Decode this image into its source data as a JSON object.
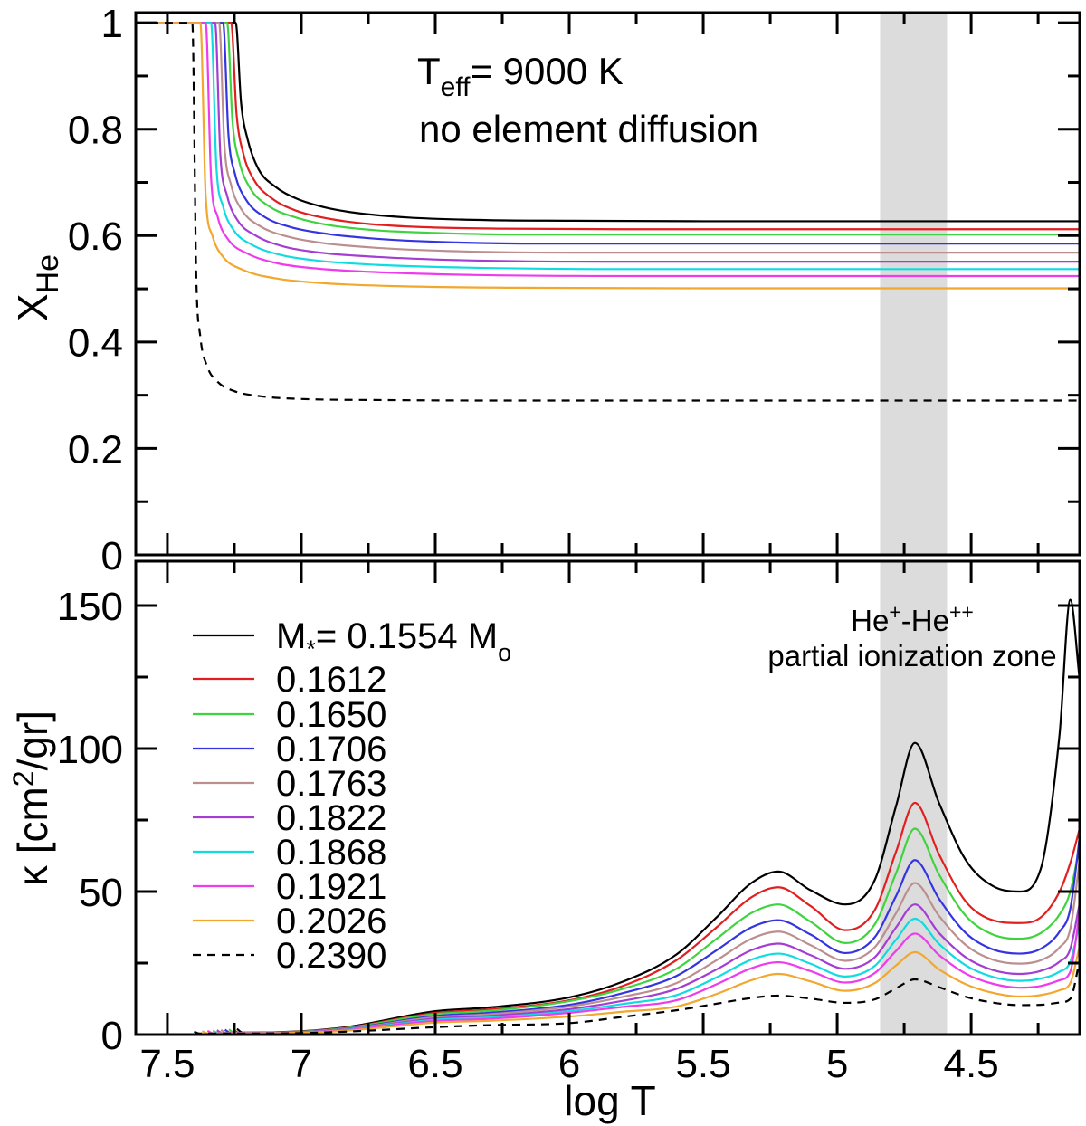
{
  "annotations": {
    "teff": {
      "prefix": "T",
      "sub": "eff",
      "rest": "= 9000 K"
    },
    "diffusion": "no element diffusion",
    "zone": {
      "line1_parts": [
        [
          "He",
          false
        ],
        [
          "+",
          true
        ],
        [
          "-He",
          false
        ],
        [
          "++",
          true
        ]
      ],
      "line2": "partial ionization zone"
    }
  },
  "axes": {
    "x_title": "log T",
    "top_y_title": {
      "main": "X",
      "sub": "He"
    },
    "bottom_y_title": {
      "pre": "κ [cm",
      "sup": "2",
      "post": "/gr]"
    }
  },
  "legend": {
    "first_row": {
      "m": "M",
      "star": "*",
      "eq": "= 0.1554 M",
      "sun": "o"
    },
    "labels": [
      "0.1612",
      "0.1650",
      "0.1706",
      "0.1763",
      "0.1822",
      "0.1868",
      "0.1921",
      "0.2026",
      "0.2390"
    ]
  },
  "chart_data": [
    {
      "type": "line",
      "title": "top panel: helium abundance profile",
      "xlabel": "log T",
      "ylabel": "X_He",
      "xlim": [
        7.618,
        4.095
      ],
      "x_reversed": true,
      "ylim": [
        0,
        1.019
      ],
      "grid": false,
      "x_major_ticks": [
        7.5,
        7.0,
        6.5,
        6.0,
        5.5,
        5.0,
        4.5
      ],
      "x_minor_ticks": [
        7.25,
        6.75,
        6.25,
        5.75,
        5.25,
        4.75,
        4.25
      ],
      "y_major_ticks": [
        0,
        0.2,
        0.4,
        0.6,
        0.8,
        1.0
      ],
      "y_tick_labels": [
        "0",
        "0.2",
        "0.4",
        "0.6",
        "0.8",
        "1"
      ],
      "y_minor_ticks": [
        0.1,
        0.3,
        0.5,
        0.7,
        0.9
      ],
      "band": {
        "logT_range": [
          4.84,
          4.59
        ],
        "color": "#dcdcdc"
      },
      "series": [
        {
          "name": "0.1554",
          "color": "#000000",
          "dash": false,
          "x": [
            7.618,
            7.245,
            7.225,
            7.2,
            7.16,
            7.1,
            7.02,
            6.92,
            6.8,
            6.6,
            6.3,
            6.0,
            5.5,
            4.095
          ],
          "y": [
            1,
            1,
            0.85,
            0.78,
            0.725,
            0.693,
            0.67,
            0.654,
            0.643,
            0.634,
            0.629,
            0.628,
            0.627,
            0.627
          ]
        },
        {
          "name": "0.1612",
          "color": "#e21f1f",
          "dash": false,
          "x": [
            7.618,
            7.262,
            7.242,
            7.217,
            7.177,
            7.11,
            7.02,
            6.9,
            6.75,
            6.55,
            6.25,
            5.8,
            4.095
          ],
          "y": [
            1,
            1,
            0.83,
            0.755,
            0.705,
            0.67,
            0.647,
            0.632,
            0.622,
            0.616,
            0.613,
            0.612,
            0.612
          ]
        },
        {
          "name": "0.1650",
          "color": "#3fd43f",
          "dash": false,
          "x": [
            7.618,
            7.277,
            7.257,
            7.232,
            7.192,
            7.12,
            7.02,
            6.9,
            6.72,
            6.5,
            6.2,
            4.095
          ],
          "y": [
            1,
            1,
            0.815,
            0.74,
            0.69,
            0.655,
            0.634,
            0.62,
            0.61,
            0.605,
            0.602,
            0.602
          ]
        },
        {
          "name": "0.1706",
          "color": "#3434e0",
          "dash": false,
          "x": [
            7.618,
            7.292,
            7.272,
            7.247,
            7.207,
            7.14,
            7.04,
            6.9,
            6.72,
            6.48,
            6.1,
            4.095
          ],
          "y": [
            1,
            1,
            0.79,
            0.715,
            0.668,
            0.636,
            0.616,
            0.603,
            0.594,
            0.588,
            0.585,
            0.585
          ]
        },
        {
          "name": "0.1763",
          "color": "#bc8f8f",
          "dash": false,
          "x": [
            7.618,
            7.307,
            7.287,
            7.262,
            7.222,
            7.155,
            7.05,
            6.92,
            6.72,
            6.45,
            6.0,
            4.095
          ],
          "y": [
            1,
            1,
            0.77,
            0.695,
            0.648,
            0.618,
            0.598,
            0.586,
            0.577,
            0.571,
            0.568,
            0.568
          ]
        },
        {
          "name": "0.1822",
          "color": "#a43dd1",
          "dash": false,
          "x": [
            7.618,
            7.322,
            7.302,
            7.277,
            7.237,
            7.17,
            7.07,
            6.93,
            6.72,
            6.42,
            5.9,
            4.095
          ],
          "y": [
            1,
            1,
            0.75,
            0.675,
            0.628,
            0.6,
            0.58,
            0.568,
            0.56,
            0.554,
            0.551,
            0.551
          ]
        },
        {
          "name": "0.1868",
          "color": "#0fdbe0",
          "dash": false,
          "x": [
            7.618,
            7.337,
            7.317,
            7.292,
            7.252,
            7.185,
            7.08,
            6.94,
            6.72,
            6.4,
            5.8,
            4.095
          ],
          "y": [
            1,
            1,
            0.73,
            0.655,
            0.61,
            0.583,
            0.564,
            0.553,
            0.545,
            0.54,
            0.537,
            0.537
          ]
        },
        {
          "name": "0.1921",
          "color": "#ee3bee",
          "dash": false,
          "x": [
            7.618,
            7.357,
            7.337,
            7.312,
            7.272,
            7.2,
            7.09,
            6.94,
            6.7,
            6.35,
            5.7,
            4.095
          ],
          "y": [
            1,
            1,
            0.71,
            0.635,
            0.592,
            0.566,
            0.548,
            0.538,
            0.531,
            0.526,
            0.524,
            0.524
          ]
        },
        {
          "name": "0.2026",
          "color": "#f2a72e",
          "dash": false,
          "x": [
            7.618,
            7.377,
            7.357,
            7.332,
            7.292,
            7.22,
            7.1,
            6.93,
            6.65,
            6.2,
            5.5,
            4.095
          ],
          "y": [
            1,
            1,
            0.675,
            0.6,
            0.56,
            0.536,
            0.52,
            0.511,
            0.505,
            0.502,
            0.501,
            0.501
          ]
        },
        {
          "name": "0.2390",
          "color": "#000000",
          "dash": true,
          "x": [
            7.618,
            7.407,
            7.392,
            7.377,
            7.352,
            7.312,
            7.252,
            7.15,
            7.0,
            6.7,
            6.2,
            4.095
          ],
          "y": [
            1,
            1,
            0.52,
            0.41,
            0.355,
            0.325,
            0.308,
            0.298,
            0.293,
            0.291,
            0.29,
            0.29
          ]
        }
      ]
    },
    {
      "type": "line",
      "title": "bottom panel: opacity profile",
      "xlabel": "log T",
      "ylabel": "kappa [cm2/gr]",
      "xlim": [
        7.618,
        4.095
      ],
      "x_reversed": true,
      "ylim": [
        0,
        165.5
      ],
      "grid": false,
      "x_major_ticks": [
        7.5,
        7.0,
        6.5,
        6.0,
        5.5,
        5.0,
        4.5
      ],
      "x_tick_labels": [
        "7.5",
        "7",
        "6.5",
        "6",
        "5.5",
        "5",
        "4.5"
      ],
      "x_minor_ticks": [
        7.25,
        6.75,
        6.25,
        5.75,
        5.25,
        4.75,
        4.25
      ],
      "y_major_ticks": [
        0,
        50,
        100,
        150
      ],
      "y_tick_labels": [
        "0",
        "50",
        "100",
        "150"
      ],
      "y_minor_ticks": [
        25,
        75,
        125
      ],
      "band": {
        "logT_range": [
          4.84,
          4.59
        ],
        "color": "#dcdcdc"
      },
      "legend_position": "upper left",
      "series": [
        {
          "name": "0.1554",
          "color": "#000000",
          "dash": false,
          "x": [
            7.24,
            7.22,
            7.1,
            6.84,
            6.5,
            6.3,
            6.0,
            5.8,
            5.6,
            5.45,
            5.32,
            5.22,
            5.1,
            4.97,
            4.86,
            4.78,
            4.71,
            4.62,
            4.52,
            4.42,
            4.32,
            4.24,
            4.17,
            4.13,
            4.095
          ],
          "y": [
            2.0,
            0.7,
            0.8,
            2.5,
            8.2,
            9.5,
            13,
            18.5,
            28,
            41,
            53,
            57,
            50.5,
            45.5,
            54,
            80,
            102,
            81,
            61,
            52,
            50,
            58,
            105,
            152,
            124
          ]
        },
        {
          "name": "0.1612",
          "color": "#e21f1f",
          "dash": false,
          "x": [
            7.255,
            7.235,
            7.1,
            6.84,
            6.5,
            6.3,
            6.0,
            5.8,
            5.6,
            5.45,
            5.32,
            5.22,
            5.1,
            4.97,
            4.86,
            4.78,
            4.71,
            4.62,
            4.52,
            4.42,
            4.32,
            4.24,
            4.17,
            4.13,
            4.095
          ],
          "y": [
            1.9,
            0.65,
            0.75,
            2.3,
            7.6,
            8.8,
            12,
            17,
            26,
            37.5,
            48,
            51.5,
            45,
            36.5,
            43.5,
            64,
            81,
            63,
            46.5,
            40,
            39,
            41,
            50,
            60,
            72
          ]
        },
        {
          "name": "0.1650",
          "color": "#3fd43f",
          "dash": false,
          "x": [
            7.27,
            7.25,
            7.1,
            6.84,
            6.5,
            6.3,
            6.0,
            5.8,
            5.6,
            5.45,
            5.32,
            5.22,
            5.1,
            4.97,
            4.86,
            4.78,
            4.71,
            4.62,
            4.52,
            4.42,
            4.32,
            4.24,
            4.17,
            4.13,
            4.095
          ],
          "y": [
            1.8,
            0.6,
            0.7,
            2.2,
            7.2,
            8.3,
            11.7,
            16,
            23,
            33.5,
            42.5,
            45.5,
            39.5,
            32,
            38.5,
            56.5,
            72,
            56,
            41.5,
            35,
            33.5,
            35.5,
            42,
            50,
            66
          ]
        },
        {
          "name": "0.1706",
          "color": "#3434e0",
          "dash": false,
          "x": [
            7.285,
            7.265,
            7.1,
            6.84,
            6.5,
            6.3,
            6.0,
            5.8,
            5.6,
            5.45,
            5.32,
            5.22,
            5.1,
            4.97,
            4.86,
            4.78,
            4.71,
            4.62,
            4.52,
            4.42,
            4.32,
            4.24,
            4.17,
            4.13,
            4.095
          ],
          "y": [
            1.7,
            0.6,
            0.65,
            2.0,
            6.5,
            7.6,
            10.4,
            14.5,
            20.5,
            29.5,
            37.5,
            40,
            35,
            28.5,
            34,
            48.5,
            61,
            47.5,
            35.5,
            29.8,
            28.3,
            30,
            36,
            44,
            69
          ]
        },
        {
          "name": "0.1763",
          "color": "#bc8f8f",
          "dash": false,
          "x": [
            7.3,
            7.28,
            7.1,
            6.84,
            6.5,
            6.3,
            6.0,
            5.8,
            5.6,
            5.45,
            5.32,
            5.22,
            5.1,
            4.97,
            4.86,
            4.78,
            4.71,
            4.62,
            4.52,
            4.42,
            4.32,
            4.24,
            4.17,
            4.13,
            4.095
          ],
          "y": [
            1.6,
            0.55,
            0.6,
            1.85,
            6.1,
            7.1,
            9.8,
            13.2,
            18,
            26,
            33.5,
            36,
            31.3,
            25.8,
            30.5,
            42.5,
            53,
            41.5,
            31.3,
            26.2,
            24.8,
            26,
            30.5,
            37,
            61
          ]
        },
        {
          "name": "0.1822",
          "color": "#a43dd1",
          "dash": false,
          "x": [
            7.315,
            7.295,
            7.1,
            6.84,
            6.5,
            6.3,
            6.0,
            5.8,
            5.6,
            5.45,
            5.32,
            5.22,
            5.1,
            4.97,
            4.86,
            4.78,
            4.71,
            4.62,
            4.52,
            4.42,
            4.32,
            4.24,
            4.17,
            4.13,
            4.095
          ],
          "y": [
            1.5,
            0.5,
            0.55,
            1.7,
            5.6,
            6.5,
            8.9,
            11.8,
            16,
            22.8,
            29.5,
            31.8,
            27.8,
            23,
            27,
            37.5,
            45.5,
            35.5,
            27,
            22.6,
            21.2,
            22.3,
            25.5,
            30,
            46
          ]
        },
        {
          "name": "0.1868",
          "color": "#0fdbe0",
          "dash": false,
          "x": [
            7.33,
            7.31,
            7.1,
            6.84,
            6.5,
            6.3,
            6.0,
            5.8,
            5.6,
            5.45,
            5.32,
            5.22,
            5.1,
            4.97,
            4.86,
            4.78,
            4.71,
            4.62,
            4.52,
            4.42,
            4.32,
            4.24,
            4.17,
            4.13,
            4.095
          ],
          "y": [
            1.4,
            0.5,
            0.5,
            1.6,
            5.2,
            6.0,
            8.2,
            10.7,
            13.8,
            20,
            26.2,
            28.3,
            24.8,
            20.3,
            24,
            33.2,
            40.5,
            31.7,
            24.2,
            20.2,
            18.8,
            19.6,
            22,
            25.5,
            39
          ]
        },
        {
          "name": "0.1921",
          "color": "#ee3bee",
          "dash": false,
          "x": [
            7.35,
            7.33,
            7.1,
            6.84,
            6.5,
            6.3,
            6.0,
            5.8,
            5.6,
            5.45,
            5.32,
            5.22,
            5.1,
            4.97,
            4.86,
            4.78,
            4.71,
            4.62,
            4.52,
            4.42,
            4.32,
            4.24,
            4.17,
            4.13,
            4.095
          ],
          "y": [
            1.3,
            0.45,
            0.5,
            1.5,
            4.8,
            5.5,
            7.6,
            9.7,
            12,
            17.6,
            23.2,
            25.3,
            22.2,
            18.2,
            21.5,
            29.3,
            35.3,
            27.8,
            21.3,
            17.8,
            16.4,
            17,
            19,
            22,
            43
          ]
        },
        {
          "name": "0.2026",
          "color": "#f2a72e",
          "dash": false,
          "x": [
            7.37,
            7.35,
            7.1,
            6.84,
            6.5,
            6.3,
            6.0,
            5.8,
            5.6,
            5.45,
            5.32,
            5.22,
            5.1,
            4.97,
            4.86,
            4.78,
            4.71,
            4.62,
            4.52,
            4.42,
            4.32,
            4.24,
            4.17,
            4.13,
            4.095
          ],
          "y": [
            1.2,
            0.4,
            0.45,
            1.3,
            4.2,
            4.8,
            6.3,
            8.0,
            9.8,
            14.2,
            19,
            21.2,
            18.6,
            15.3,
            18,
            24.2,
            28.8,
            22.8,
            17.6,
            14.6,
            13.3,
            13.8,
            15.5,
            18,
            31
          ]
        },
        {
          "name": "0.2390",
          "color": "#000000",
          "dash": true,
          "x": [
            7.4,
            7.38,
            7.1,
            6.84,
            6.5,
            6.3,
            6.0,
            5.8,
            5.6,
            5.45,
            5.32,
            5.22,
            5.1,
            4.97,
            4.86,
            4.78,
            4.71,
            4.62,
            4.52,
            4.42,
            4.32,
            4.24,
            4.17,
            4.13,
            4.095
          ],
          "y": [
            1.0,
            0.35,
            0.4,
            1.0,
            2.6,
            3.3,
            4.0,
            6.2,
            8.5,
            10.8,
            12.8,
            13.6,
            12.6,
            11.1,
            12.3,
            16.2,
            19.3,
            16.6,
            13.2,
            11.2,
            10.3,
            10.4,
            11.2,
            12.5,
            26
          ]
        }
      ]
    }
  ]
}
